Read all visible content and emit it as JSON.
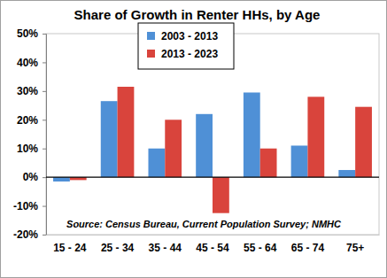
{
  "chart_data": {
    "type": "bar",
    "title": "Share of Growth in Renter HHs, by Age",
    "categories": [
      "15 - 24",
      "25 - 34",
      "35 - 44",
      "45 - 54",
      "55 - 64",
      "65 - 74",
      "75+"
    ],
    "series": [
      {
        "name": "2003 - 2013",
        "color": "#4f90d6",
        "values": [
          -1.5,
          26.5,
          10,
          22,
          29.5,
          11,
          2.5
        ]
      },
      {
        "name": "2013 - 2023",
        "color": "#d9443c",
        "values": [
          -1,
          31.5,
          20,
          -12.5,
          10,
          28,
          24.5
        ]
      }
    ],
    "ylim": [
      -20,
      50
    ],
    "yticks": [
      {
        "value": -20,
        "label": "-20%"
      },
      {
        "value": -10,
        "label": "-10%"
      },
      {
        "value": 0,
        "label": "0%"
      },
      {
        "value": 10,
        "label": "10%"
      },
      {
        "value": 20,
        "label": "20%"
      },
      {
        "value": 30,
        "label": "30%"
      },
      {
        "value": 40,
        "label": "40%"
      },
      {
        "value": 50,
        "label": "50%"
      }
    ],
    "grid": false,
    "legend": "upper center",
    "annotations": [
      "Source: Census Bureau, Current Population Survey; NMHC"
    ]
  }
}
